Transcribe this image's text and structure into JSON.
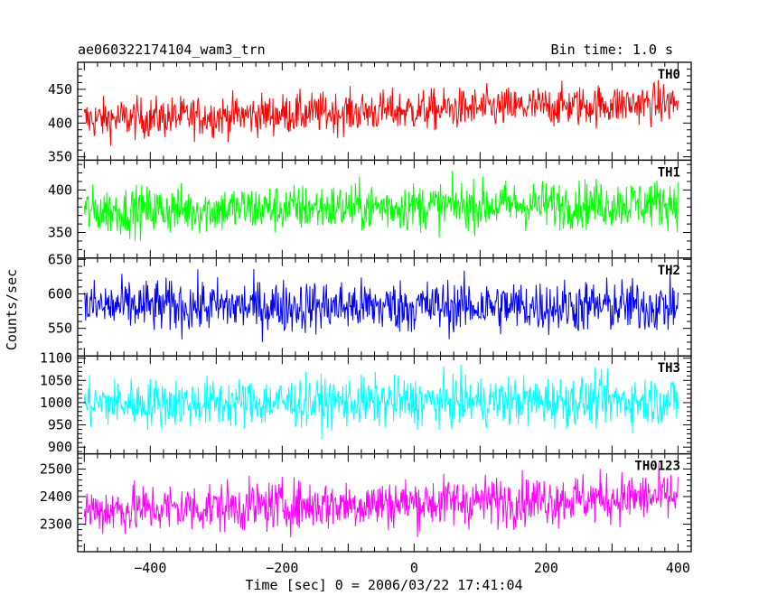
{
  "header": {
    "title": "ae060322174104_wam3_trn",
    "bin_time": "Bin time: 1.0 s"
  },
  "chart_data": {
    "type": "line",
    "title": "ae060322174104_wam3_trn",
    "subtitle": "Bin time: 1.0 s",
    "xlabel": "Time [sec] 0 = 2006/03/22 17:41:04",
    "ylabel": "Counts/sec",
    "xlim": [
      -510,
      420
    ],
    "data_xrange": [
      -500,
      400
    ],
    "bin_time_s": 1.0,
    "grid": false,
    "legend": "none",
    "x_ticks": [
      -400,
      -200,
      0,
      200,
      400
    ],
    "panels": [
      {
        "label": "TH0",
        "color": "#ff0000",
        "ylim": [
          345,
          490
        ],
        "y_ticks": [
          350,
          400,
          450
        ],
        "trend_start": 405,
        "trend_end": 430,
        "noise_amplitude": 30
      },
      {
        "label": "TH1",
        "color": "#00ff00",
        "ylim": [
          320,
          435
        ],
        "y_ticks": [
          350,
          400
        ],
        "trend_start": 375,
        "trend_end": 385,
        "noise_amplitude": 28
      },
      {
        "label": "TH2",
        "color": "#0000ff",
        "ylim": [
          510,
          652
        ],
        "y_ticks": [
          550,
          600,
          650
        ],
        "trend_start": 582,
        "trend_end": 582,
        "noise_amplitude": 38
      },
      {
        "label": "TH3",
        "color": "#00ffff",
        "ylim": [
          885,
          1105
        ],
        "y_ticks": [
          900,
          950,
          1000,
          1050,
          1100
        ],
        "trend_start": 998,
        "trend_end": 1005,
        "noise_amplitude": 55
      },
      {
        "label": "TH0123",
        "color": "#ff00ff",
        "ylim": [
          2200,
          2555
        ],
        "y_ticks": [
          2300,
          2400,
          2500
        ],
        "trend_start": 2350,
        "trend_end": 2400,
        "noise_amplitude": 90
      }
    ]
  }
}
